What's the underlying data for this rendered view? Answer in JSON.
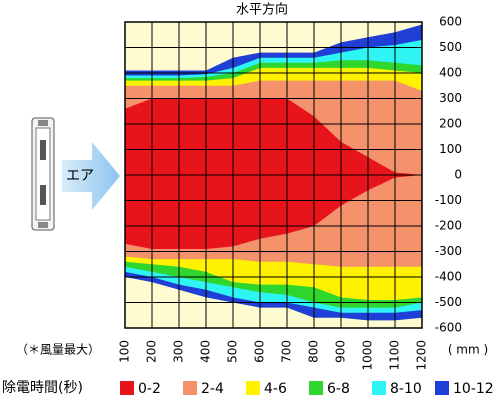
{
  "chart_data": {
    "type": "contour",
    "title": "水平方向",
    "note": "（＊風量最大）",
    "x_unit": "( mm )",
    "legend_title": "除電時間(秒)",
    "air_label": "エア",
    "background": "#fffbd0",
    "x": [
      100,
      200,
      300,
      400,
      500,
      600,
      700,
      800,
      900,
      1000,
      1100,
      1200
    ],
    "xlim": [
      100,
      1200
    ],
    "xticks": [
      100,
      200,
      300,
      400,
      500,
      600,
      700,
      800,
      900,
      1000,
      1100,
      1200
    ],
    "ylim": [
      -600,
      600
    ],
    "yticks": [
      600,
      500,
      400,
      300,
      200,
      100,
      0,
      -100,
      -200,
      -300,
      -400,
      -500,
      -600
    ],
    "grid": true,
    "series": [
      {
        "name": "0-2",
        "color": "#e8141c",
        "values": [
          260,
          300,
          300,
          300,
          300,
          300,
          300,
          230,
          130,
          70,
          10,
          0
        ],
        "lower": [
          -270,
          -290,
          -290,
          -290,
          -280,
          -250,
          -230,
          -200,
          -120,
          -60,
          -10,
          0
        ]
      },
      {
        "name": "2-4",
        "color": "#f4926c",
        "values": [
          350,
          350,
          350,
          350,
          350,
          370,
          370,
          370,
          370,
          370,
          370,
          330
        ],
        "lower": [
          -320,
          -330,
          -330,
          -330,
          -330,
          -340,
          -340,
          -350,
          -360,
          -360,
          -360,
          -360
        ]
      },
      {
        "name": "4-6",
        "color": "#fff200",
        "values": [
          370,
          370,
          370,
          370,
          380,
          420,
          420,
          420,
          420,
          420,
          410,
          400
        ],
        "lower": [
          -340,
          -350,
          -360,
          -380,
          -420,
          -430,
          -430,
          -440,
          -480,
          -490,
          -490,
          -480
        ]
      },
      {
        "name": "6-8",
        "color": "#2ed62e",
        "values": [
          380,
          380,
          380,
          385,
          400,
          440,
          440,
          440,
          450,
          450,
          440,
          430
        ],
        "lower": [
          -360,
          -380,
          -400,
          -420,
          -440,
          -460,
          -470,
          -500,
          -520,
          -520,
          -520,
          -500
        ]
      },
      {
        "name": "8-10",
        "color": "#2ef4f4",
        "values": [
          390,
          390,
          390,
          395,
          420,
          460,
          460,
          460,
          480,
          500,
          510,
          530
        ],
        "lower": [
          -380,
          -400,
          -430,
          -450,
          -480,
          -500,
          -500,
          -520,
          -540,
          -540,
          -540,
          -530
        ]
      },
      {
        "name": "10-12",
        "color": "#1f3fd6",
        "values": [
          410,
          410,
          410,
          410,
          460,
          480,
          480,
          480,
          520,
          540,
          560,
          590
        ],
        "lower": [
          -400,
          -420,
          -450,
          -480,
          -500,
          -520,
          -520,
          -560,
          -560,
          -570,
          -570,
          -560
        ]
      }
    ]
  }
}
